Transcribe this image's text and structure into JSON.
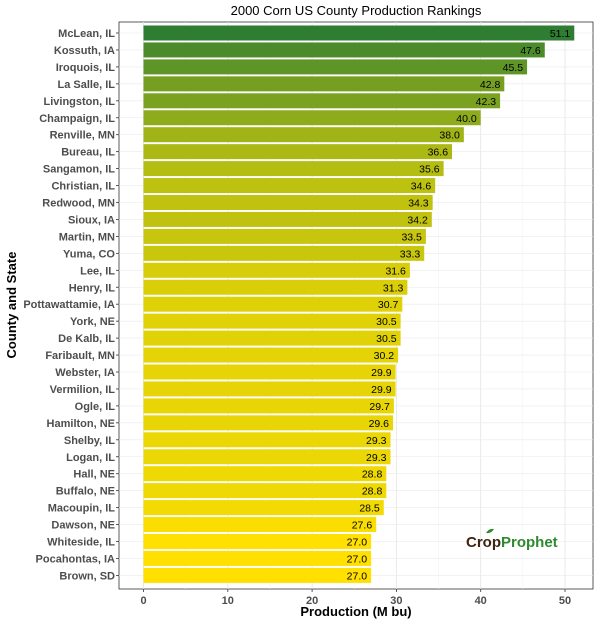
{
  "chart_data": {
    "type": "bar",
    "orientation": "horizontal",
    "title": "2000 Corn US County Production Rankings",
    "xlabel": "Production (M bu)",
    "ylabel": "County and State",
    "xlim": [
      0,
      54
    ],
    "xticks": [
      0,
      10,
      20,
      30,
      40,
      50
    ],
    "grid": true,
    "categories": [
      "McLean, IL",
      "Kossuth, IA",
      "Iroquois, IL",
      "La Salle, IL",
      "Livingston, IL",
      "Champaign, IL",
      "Renville, MN",
      "Bureau, IL",
      "Sangamon, IL",
      "Christian, IL",
      "Redwood, MN",
      "Sioux, IA",
      "Martin, MN",
      "Yuma, CO",
      "Lee, IL",
      "Henry, IL",
      "Pottawattamie, IA",
      "York, NE",
      "De Kalb, IL",
      "Faribault, MN",
      "Webster, IA",
      "Vermilion, IL",
      "Ogle, IL",
      "Hamilton, NE",
      "Shelby, IL",
      "Logan, IL",
      "Hall, NE",
      "Buffalo, NE",
      "Macoupin, IL",
      "Dawson, NE",
      "Whiteside, IL",
      "Pocahontas, IA",
      "Brown, SD"
    ],
    "values": [
      51.1,
      47.6,
      45.5,
      42.8,
      42.3,
      40.0,
      38.0,
      36.6,
      35.6,
      34.6,
      34.3,
      34.2,
      33.5,
      33.3,
      31.6,
      31.3,
      30.7,
      30.5,
      30.5,
      30.2,
      29.9,
      29.9,
      29.7,
      29.6,
      29.3,
      29.3,
      28.8,
      28.8,
      28.5,
      27.6,
      27.0,
      27.0,
      27.0
    ],
    "value_labels": [
      "51.1",
      "47.6",
      "45.5",
      "42.8",
      "42.3",
      "40.0",
      "38.0",
      "36.6",
      "35.6",
      "34.6",
      "34.3",
      "34.2",
      "33.5",
      "33.3",
      "31.6",
      "31.3",
      "30.7",
      "30.5",
      "30.5",
      "30.2",
      "29.9",
      "29.9",
      "29.7",
      "29.6",
      "29.3",
      "29.3",
      "28.8",
      "28.8",
      "28.5",
      "27.6",
      "27.0",
      "27.0",
      "27.0"
    ],
    "color_scale": {
      "high": "#2e7d32",
      "low": "#ffe000"
    }
  },
  "logo": {
    "part1": "Crop",
    "part2": "Prophet"
  }
}
